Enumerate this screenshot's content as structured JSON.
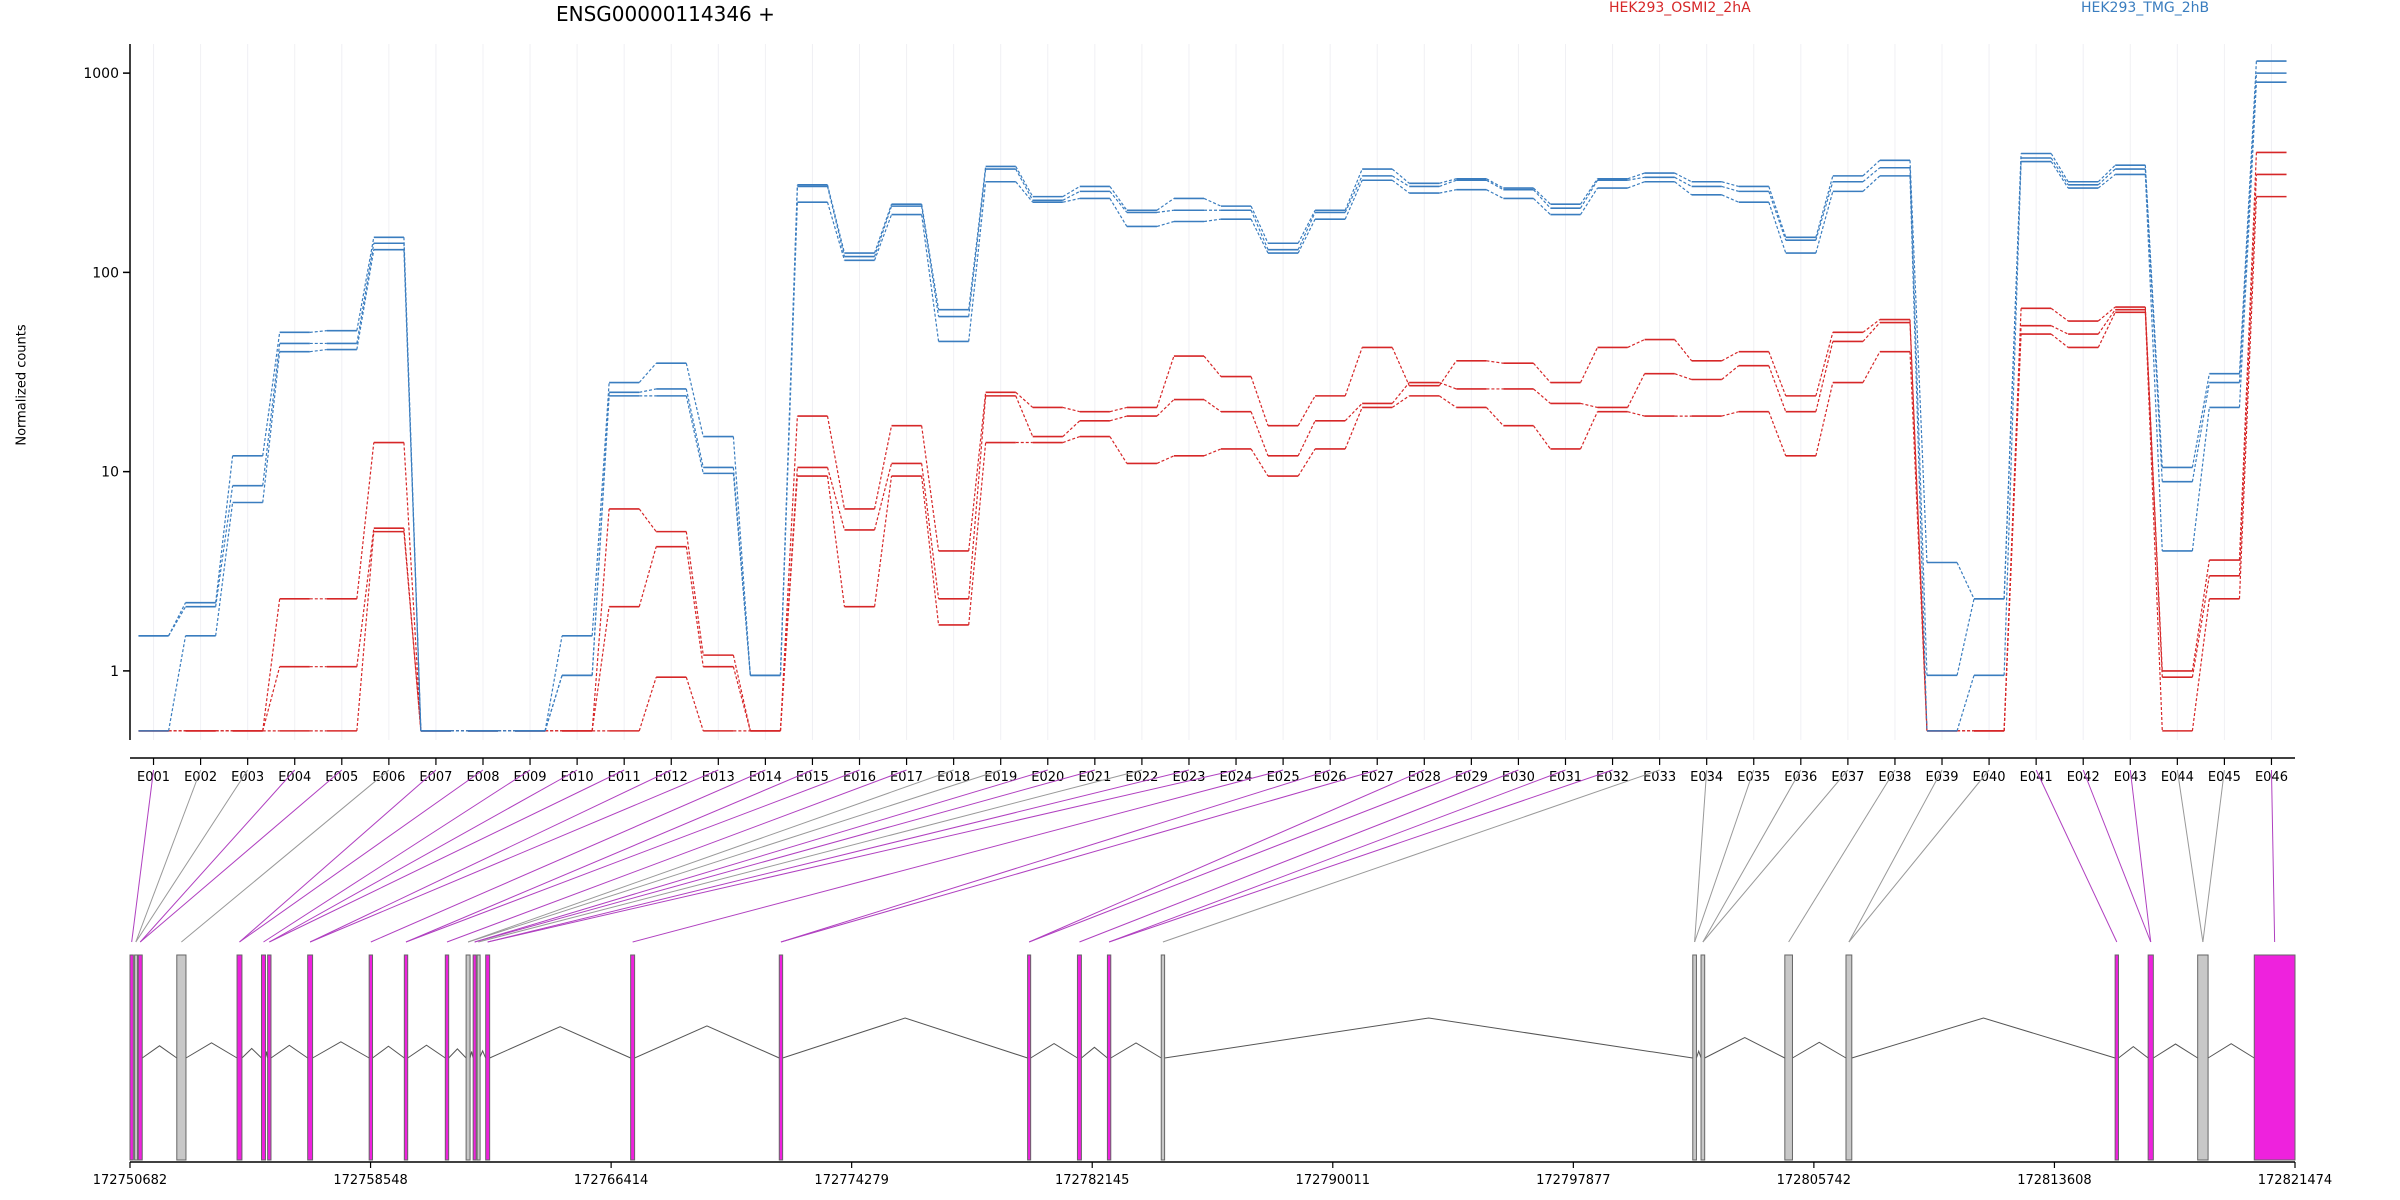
{
  "header": {
    "gene_title": "ENSG00000114346 +"
  },
  "chart_data": {
    "type": "line",
    "title": "ENSG00000114346 +",
    "ylabel": "Normalized counts",
    "xlabel": "",
    "yscale": "log",
    "ylim": [
      0.45,
      1400
    ],
    "yticks": [
      "1",
      "10",
      "100",
      "1000"
    ],
    "grid": "vertical",
    "legend": "top",
    "categories": [
      "E001",
      "E002",
      "E003",
      "E004",
      "E005",
      "E006",
      "E007",
      "E008",
      "E009",
      "E010",
      "E011",
      "E012",
      "E013",
      "E014",
      "E015",
      "E016",
      "E017",
      "E018",
      "E019",
      "E020",
      "E021",
      "E022",
      "E023",
      "E024",
      "E025",
      "E026",
      "E027",
      "E028",
      "E029",
      "E030",
      "E031",
      "E032",
      "E033",
      "E034",
      "E035",
      "E036",
      "E037",
      "E038",
      "E039",
      "E040",
      "E041",
      "E042",
      "E043",
      "E044",
      "E045",
      "E046"
    ],
    "groups": [
      {
        "name": "HEK293_OSMI2_2hA",
        "color": "#d62728"
      },
      {
        "name": "HEK293_TMG_2hB",
        "color": "#3a7dbf"
      }
    ],
    "series": [
      {
        "group": 0,
        "values": [
          0.5,
          0.5,
          0.5,
          2.3,
          2.3,
          14,
          0.5,
          0.5,
          0.5,
          0.5,
          6.5,
          5,
          1.2,
          0.5,
          19,
          6.5,
          17,
          4,
          25,
          21,
          20,
          21,
          38,
          30,
          17,
          24,
          42,
          27,
          36,
          35,
          28,
          42,
          46,
          36,
          40,
          24,
          50,
          58,
          0.5,
          0.5,
          66,
          57,
          67,
          1.0,
          3.6,
          400
        ]
      },
      {
        "group": 0,
        "values": [
          0.5,
          0.5,
          0.5,
          1.05,
          1.05,
          5.2,
          0.5,
          0.5,
          0.5,
          0.5,
          2.1,
          4.2,
          1.05,
          0.5,
          10.5,
          5.1,
          11,
          2.3,
          24,
          15,
          18,
          19,
          23,
          20,
          12,
          18,
          22,
          28,
          26,
          26,
          22,
          21,
          31,
          29,
          34,
          20,
          45,
          56,
          0.5,
          0.5,
          54,
          49,
          65,
          0.93,
          3.0,
          310
        ]
      },
      {
        "group": 0,
        "values": [
          0.5,
          0.5,
          0.5,
          0.5,
          0.5,
          5.0,
          0.5,
          0.5,
          0.5,
          0.5,
          0.5,
          0.93,
          0.5,
          0.5,
          9.5,
          2.1,
          9.5,
          1.7,
          14,
          14,
          15,
          11,
          12,
          13,
          9.5,
          13,
          21,
          24,
          21,
          17,
          13,
          20,
          19,
          19,
          20,
          12,
          28,
          40,
          0.5,
          0.5,
          49,
          42,
          63,
          0.5,
          2.3,
          240
        ]
      },
      {
        "group": 1,
        "values": [
          1.5,
          2.2,
          12,
          50,
          51,
          150,
          0.5,
          0.5,
          0.5,
          1.5,
          28,
          35,
          15,
          0.95,
          275,
          125,
          220,
          65,
          340,
          240,
          270,
          205,
          235,
          215,
          140,
          205,
          330,
          280,
          295,
          265,
          220,
          295,
          315,
          285,
          270,
          150,
          305,
          365,
          3.5,
          2.3,
          395,
          285,
          345,
          10.5,
          31,
          1150
        ]
      },
      {
        "group": 1,
        "values": [
          1.5,
          2.1,
          8.5,
          44,
          44,
          140,
          0.5,
          0.5,
          0.5,
          0.95,
          25,
          26,
          10.5,
          0.95,
          270,
          120,
          215,
          60,
          330,
          230,
          255,
          200,
          205,
          205,
          130,
          200,
          305,
          270,
          290,
          260,
          210,
          290,
          300,
          270,
          255,
          145,
          285,
          335,
          0.95,
          2.3,
          375,
          275,
          330,
          8.9,
          28,
          1000
        ]
      },
      {
        "group": 1,
        "values": [
          0.5,
          1.5,
          7.0,
          40,
          41,
          130,
          0.5,
          0.5,
          0.5,
          0.95,
          24,
          24,
          9.8,
          0.95,
          225,
          115,
          195,
          45,
          285,
          225,
          235,
          170,
          180,
          185,
          125,
          185,
          290,
          250,
          260,
          235,
          195,
          265,
          285,
          245,
          225,
          125,
          255,
          305,
          0.5,
          0.95,
          360,
          265,
          310,
          4.0,
          21,
          900
        ]
      }
    ]
  },
  "gene_model": {
    "coordinate_ticks": [
      "172750682",
      "172758548",
      "172766414",
      "172774279",
      "172782145",
      "172790011",
      "172797877",
      "172805742",
      "172813608",
      "172821474"
    ],
    "exon_colors": {
      "tested": "#ee22dd",
      "other": "#c8c8c8",
      "outline": "#666666"
    },
    "exons": [
      {
        "start": 172750682,
        "end": 172750792,
        "tested": true
      },
      {
        "start": 172750832,
        "end": 172750912,
        "tested": false
      },
      {
        "start": 172750952,
        "end": 172751082,
        "tested": true
      },
      {
        "start": 172752212,
        "end": 172752512,
        "tested": false
      },
      {
        "start": 172754182,
        "end": 172754342,
        "tested": true
      },
      {
        "start": 172754982,
        "end": 172755112,
        "tested": true
      },
      {
        "start": 172755182,
        "end": 172755292,
        "tested": true
      },
      {
        "start": 172756492,
        "end": 172756652,
        "tested": true
      },
      {
        "start": 172758502,
        "end": 172758612,
        "tested": true
      },
      {
        "start": 172759652,
        "end": 172759762,
        "tested": true
      },
      {
        "start": 172760992,
        "end": 172761102,
        "tested": true
      },
      {
        "start": 172761672,
        "end": 172761802,
        "tested": false
      },
      {
        "start": 172761902,
        "end": 172762002,
        "tested": true
      },
      {
        "start": 172762032,
        "end": 172762112,
        "tested": false
      },
      {
        "start": 172762312,
        "end": 172762442,
        "tested": true
      },
      {
        "start": 172767052,
        "end": 172767182,
        "tested": true
      },
      {
        "start": 172771912,
        "end": 172772022,
        "tested": true
      },
      {
        "start": 172780032,
        "end": 172780132,
        "tested": true
      },
      {
        "start": 172781662,
        "end": 172781792,
        "tested": true
      },
      {
        "start": 172782642,
        "end": 172782752,
        "tested": true
      },
      {
        "start": 172784402,
        "end": 172784512,
        "tested": false
      },
      {
        "start": 172801782,
        "end": 172801902,
        "tested": false
      },
      {
        "start": 172802052,
        "end": 172802172,
        "tested": false
      },
      {
        "start": 172804792,
        "end": 172805042,
        "tested": false
      },
      {
        "start": 172806792,
        "end": 172806982,
        "tested": false
      },
      {
        "start": 172815592,
        "end": 172815702,
        "tested": true
      },
      {
        "start": 172816672,
        "end": 172816842,
        "tested": true
      },
      {
        "start": 172818292,
        "end": 172818632,
        "tested": false
      },
      {
        "start": 172820142,
        "end": 172821474,
        "tested": true
      }
    ]
  }
}
